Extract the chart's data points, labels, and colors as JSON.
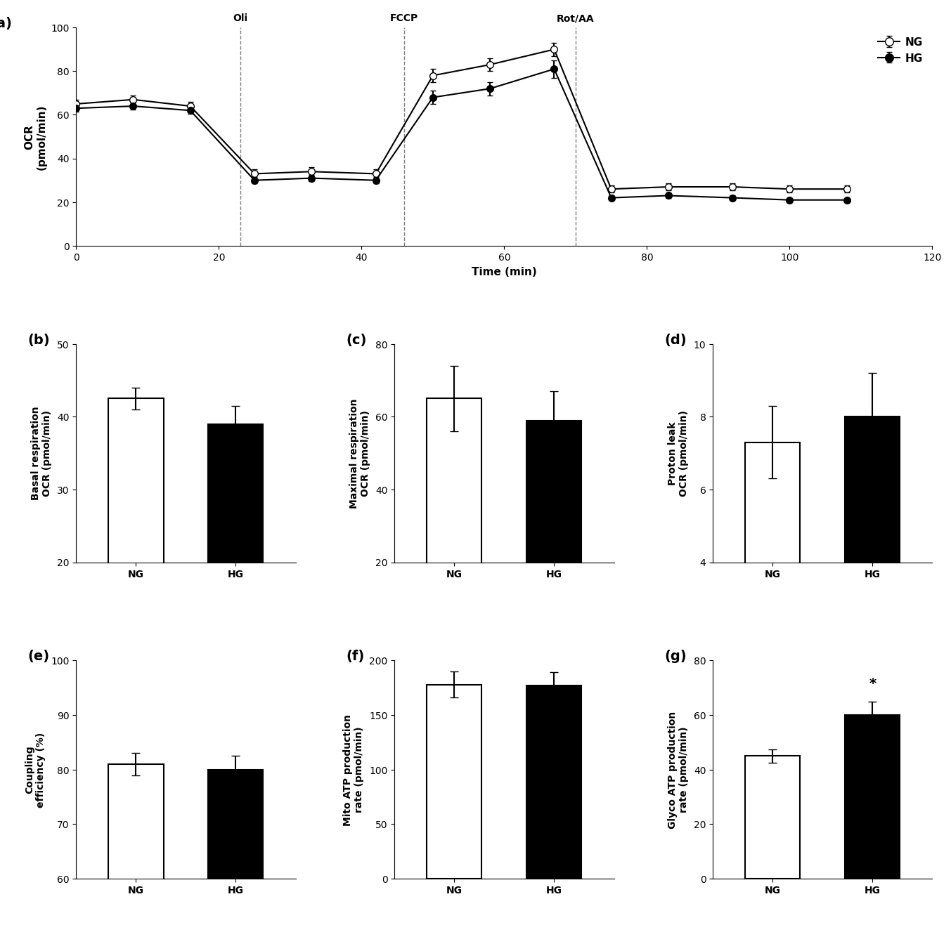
{
  "panel_a": {
    "NG_x": [
      0,
      8,
      16,
      25,
      33,
      42,
      50,
      58,
      67,
      75,
      83,
      92,
      100,
      108
    ],
    "NG_y": [
      65,
      67,
      64,
      33,
      34,
      33,
      78,
      83,
      90,
      26,
      27,
      27,
      26,
      26
    ],
    "HG_x": [
      0,
      8,
      16,
      25,
      33,
      42,
      50,
      58,
      67,
      75,
      83,
      92,
      100,
      108
    ],
    "HG_y": [
      63,
      64,
      62,
      30,
      31,
      30,
      68,
      72,
      81,
      22,
      23,
      22,
      21,
      21
    ],
    "NG_err": [
      2,
      2,
      2,
      2,
      2,
      2,
      3,
      3,
      3,
      1.5,
      1.5,
      1.5,
      1.5,
      1.5
    ],
    "HG_err": [
      1.5,
      1.5,
      1.5,
      1.5,
      1.5,
      1.5,
      3,
      3,
      4,
      1,
      1,
      1,
      1,
      1
    ],
    "vlines": [
      23,
      46,
      70
    ],
    "vline_labels": [
      "Oli",
      "FCCP",
      "Rot/AA"
    ],
    "xlabel": "Time (min)",
    "ylabel": "OCR\n(pmol/min)",
    "ylim": [
      0,
      100
    ],
    "xlim": [
      0,
      120
    ],
    "xticks": [
      0,
      20,
      40,
      60,
      80,
      100,
      120
    ],
    "yticks": [
      0,
      20,
      40,
      60,
      80,
      100
    ]
  },
  "panel_b": {
    "categories": [
      "NG",
      "HG"
    ],
    "values": [
      42.5,
      39.0
    ],
    "errors": [
      1.5,
      2.5
    ],
    "colors": [
      "white",
      "black"
    ],
    "ylabel": "Basal respiration\nOCR (pmol/min)",
    "ylim": [
      20,
      50
    ],
    "yticks": [
      20,
      30,
      40,
      50
    ]
  },
  "panel_c": {
    "categories": [
      "NG",
      "HG"
    ],
    "values": [
      65,
      59
    ],
    "errors": [
      9,
      8
    ],
    "colors": [
      "white",
      "black"
    ],
    "ylabel": "Maximal respiration\nOCR (pmol/min)",
    "ylim": [
      20,
      80
    ],
    "yticks": [
      20,
      40,
      60,
      80
    ]
  },
  "panel_d": {
    "categories": [
      "NG",
      "HG"
    ],
    "values": [
      7.3,
      8.0
    ],
    "errors": [
      1.0,
      1.2
    ],
    "colors": [
      "white",
      "black"
    ],
    "ylabel": "Proton leak\nOCR (pmol/min)",
    "ylim": [
      4,
      10
    ],
    "yticks": [
      4,
      6,
      8,
      10
    ]
  },
  "panel_e": {
    "categories": [
      "NG",
      "HG"
    ],
    "values": [
      81.0,
      80.0
    ],
    "errors": [
      2.0,
      2.5
    ],
    "colors": [
      "white",
      "black"
    ],
    "ylabel": "Coupling\nefficiency (%)",
    "ylim": [
      60,
      100
    ],
    "yticks": [
      60,
      70,
      80,
      90,
      100
    ]
  },
  "panel_f": {
    "categories": [
      "NG",
      "HG"
    ],
    "values": [
      178,
      177
    ],
    "errors": [
      12,
      12
    ],
    "colors": [
      "white",
      "black"
    ],
    "ylabel": "Mito ATP production\nrate (pmol/min)",
    "ylim": [
      0,
      200
    ],
    "yticks": [
      0,
      50,
      100,
      150,
      200
    ]
  },
  "panel_g": {
    "categories": [
      "NG",
      "HG"
    ],
    "values": [
      45,
      60
    ],
    "errors": [
      2.5,
      5
    ],
    "colors": [
      "white",
      "black"
    ],
    "ylabel": "Glyco ATP production\nrate (pmol/min)",
    "ylim": [
      0,
      80
    ],
    "yticks": [
      0,
      20,
      40,
      60,
      80
    ],
    "significance": "*"
  },
  "panel_labels": [
    "(a)",
    "(b)",
    "(c)",
    "(d)",
    "(e)",
    "(f)",
    "(g)"
  ],
  "edgecolor": "black",
  "linewidth": 1.5
}
